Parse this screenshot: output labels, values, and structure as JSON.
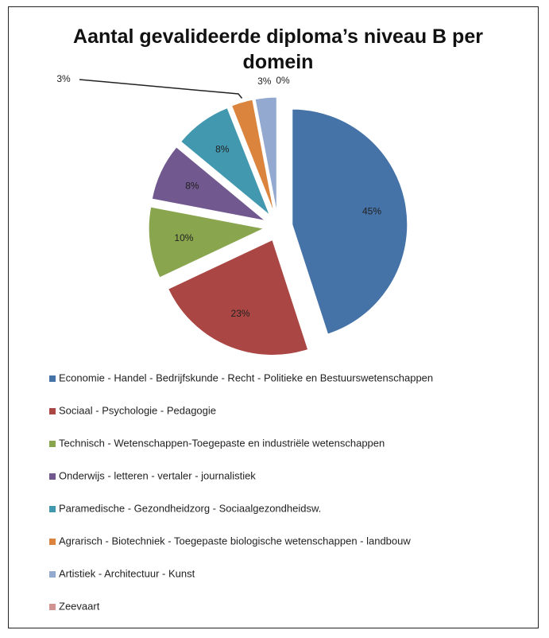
{
  "chart_data": {
    "type": "pie",
    "title": "Aantal gevalideerde diploma’s niveau B per domein",
    "categories": [
      "Economie - Handel - Bedrijfskunde - Recht - Politieke en Bestuurswetenschappen",
      "Sociaal - Psychologie - Pedagogie",
      "Technisch - Wetenschappen-Toegepaste en industriële wetenschappen",
      "Onderwijs - letteren - vertaler - journalistiek",
      "Paramedische - Gezondheidzorg - Sociaalgezondheidsw.",
      "Agrarisch - Biotechniek  - Toegepaste biologische wetenschappen - landbouw",
      "Artistiek - Architectuur - Kunst",
      "Zeevaart"
    ],
    "values": [
      45,
      23,
      10,
      8,
      8,
      3,
      3,
      0
    ],
    "value_labels": [
      "45%",
      "23%",
      "10%",
      "8%",
      "8%",
      "3%",
      "3%",
      "0%"
    ],
    "colors": [
      "#4572a7",
      "#aa4643",
      "#89a54e",
      "#71588f",
      "#4198af",
      "#db843d",
      "#93a9cf",
      "#d19392"
    ],
    "legend": "bottom"
  }
}
